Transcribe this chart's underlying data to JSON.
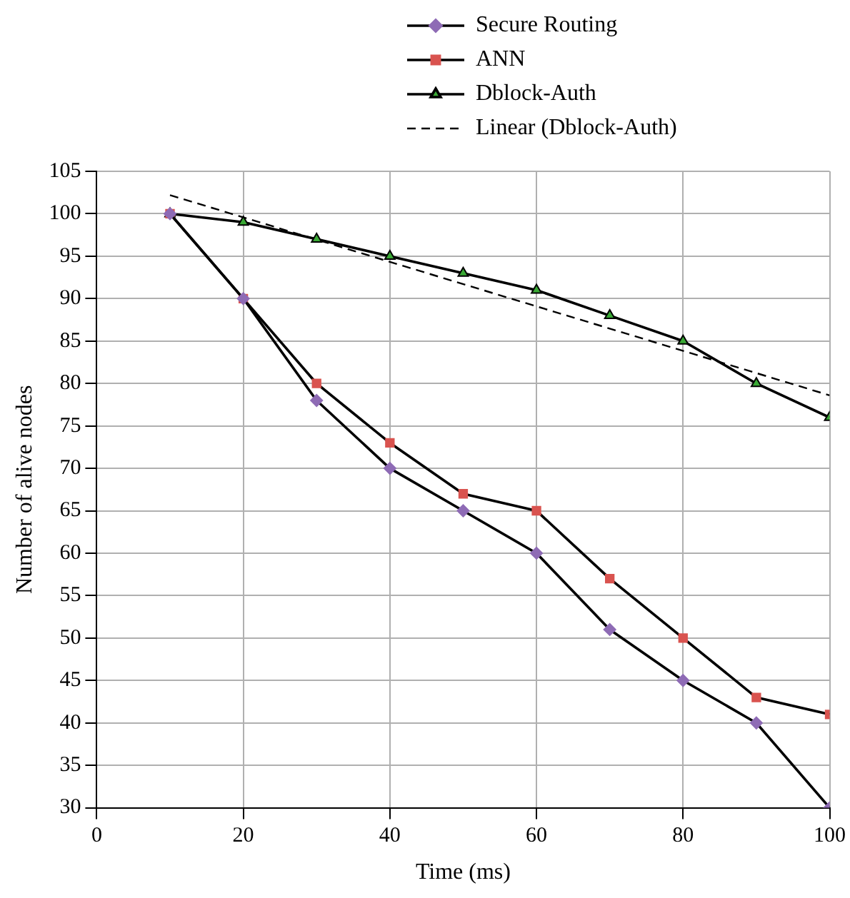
{
  "chart_data": {
    "type": "line",
    "xlabel": "Time (ms)",
    "ylabel": "Number of alive nodes",
    "xlim": [
      0,
      100
    ],
    "xticks": [
      0,
      20,
      40,
      60,
      80,
      100
    ],
    "ylim": [
      30,
      105
    ],
    "yticks": [
      30,
      35,
      40,
      45,
      50,
      55,
      60,
      65,
      70,
      75,
      80,
      85,
      90,
      95,
      100,
      105
    ],
    "grid": true,
    "legend": "top right",
    "series": [
      {
        "name": "Secure Routing",
        "color": "#8e6bb5",
        "marker": "diamond",
        "x": [
          10,
          20,
          30,
          40,
          50,
          60,
          70,
          80,
          90,
          100
        ],
        "values": [
          100,
          90,
          78,
          70,
          65,
          60,
          51,
          45,
          40,
          30
        ]
      },
      {
        "name": "ANN",
        "color": "#d9534f",
        "marker": "square",
        "x": [
          10,
          20,
          30,
          40,
          50,
          60,
          70,
          80,
          90,
          100
        ],
        "values": [
          100,
          90,
          80,
          73,
          67,
          65,
          57,
          50,
          43,
          41
        ]
      },
      {
        "name": "Dblock-Auth",
        "color": "#3aa935",
        "marker": "triangle",
        "x": [
          10,
          20,
          30,
          40,
          50,
          60,
          70,
          80,
          90,
          100
        ],
        "values": [
          100,
          99,
          97,
          95,
          93,
          91,
          88,
          85,
          80,
          76
        ]
      },
      {
        "name": "Linear (Dblock-Auth)",
        "color": "#000000",
        "marker": "none",
        "line_style": "dashed",
        "x": [
          10,
          100
        ],
        "values": [
          102.2,
          78.6
        ]
      }
    ]
  }
}
